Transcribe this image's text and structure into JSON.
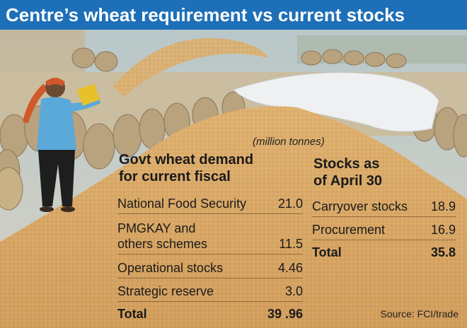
{
  "header": {
    "title": "Centre’s wheat requirement  vs current stocks"
  },
  "unit_note": "(million tonnes)",
  "demand": {
    "title_line1": "Govt wheat demand",
    "title_line2": "for current fiscal",
    "rows": [
      {
        "label_line1": "National Food Security",
        "label_line2": "",
        "value": "21.0"
      },
      {
        "label_line1": "PMGKAY and",
        "label_line2": "others schemes",
        "value": "11.5"
      },
      {
        "label_line1": "Operational stocks",
        "label_line2": "",
        "value": "4.46"
      },
      {
        "label_line1": "Strategic reserve",
        "label_line2": "",
        "value": "3.0"
      }
    ],
    "total": {
      "label": "Total",
      "value": "39 .96"
    }
  },
  "stocks": {
    "title_line1": "Stocks as",
    "title_line2": "of April 30",
    "rows": [
      {
        "label": "Carryover stocks",
        "value": "18.9"
      },
      {
        "label": "Procurement",
        "value": "16.9"
      }
    ],
    "total": {
      "label": "Total",
      "value": "35.8"
    }
  },
  "source": "Source: FCI/trade",
  "colors": {
    "header_bg": "#1d6fb8",
    "wheat": "#d9a964",
    "text": "#1a1a1a"
  },
  "chart_data": [
    {
      "type": "table",
      "title": "Govt wheat demand for current fiscal",
      "unit": "million tonnes",
      "rows": [
        {
          "category": "National Food Security",
          "value": 21.0
        },
        {
          "category": "PMGKAY and others schemes",
          "value": 11.5
        },
        {
          "category": "Operational stocks",
          "value": 4.46
        },
        {
          "category": "Strategic reserve",
          "value": 3.0
        },
        {
          "category": "Total",
          "value": 39.96
        }
      ]
    },
    {
      "type": "table",
      "title": "Stocks as of April 30",
      "unit": "million tonnes",
      "rows": [
        {
          "category": "Carryover stocks",
          "value": 18.9
        },
        {
          "category": "Procurement",
          "value": 16.9
        },
        {
          "category": "Total",
          "value": 35.8
        }
      ]
    }
  ]
}
